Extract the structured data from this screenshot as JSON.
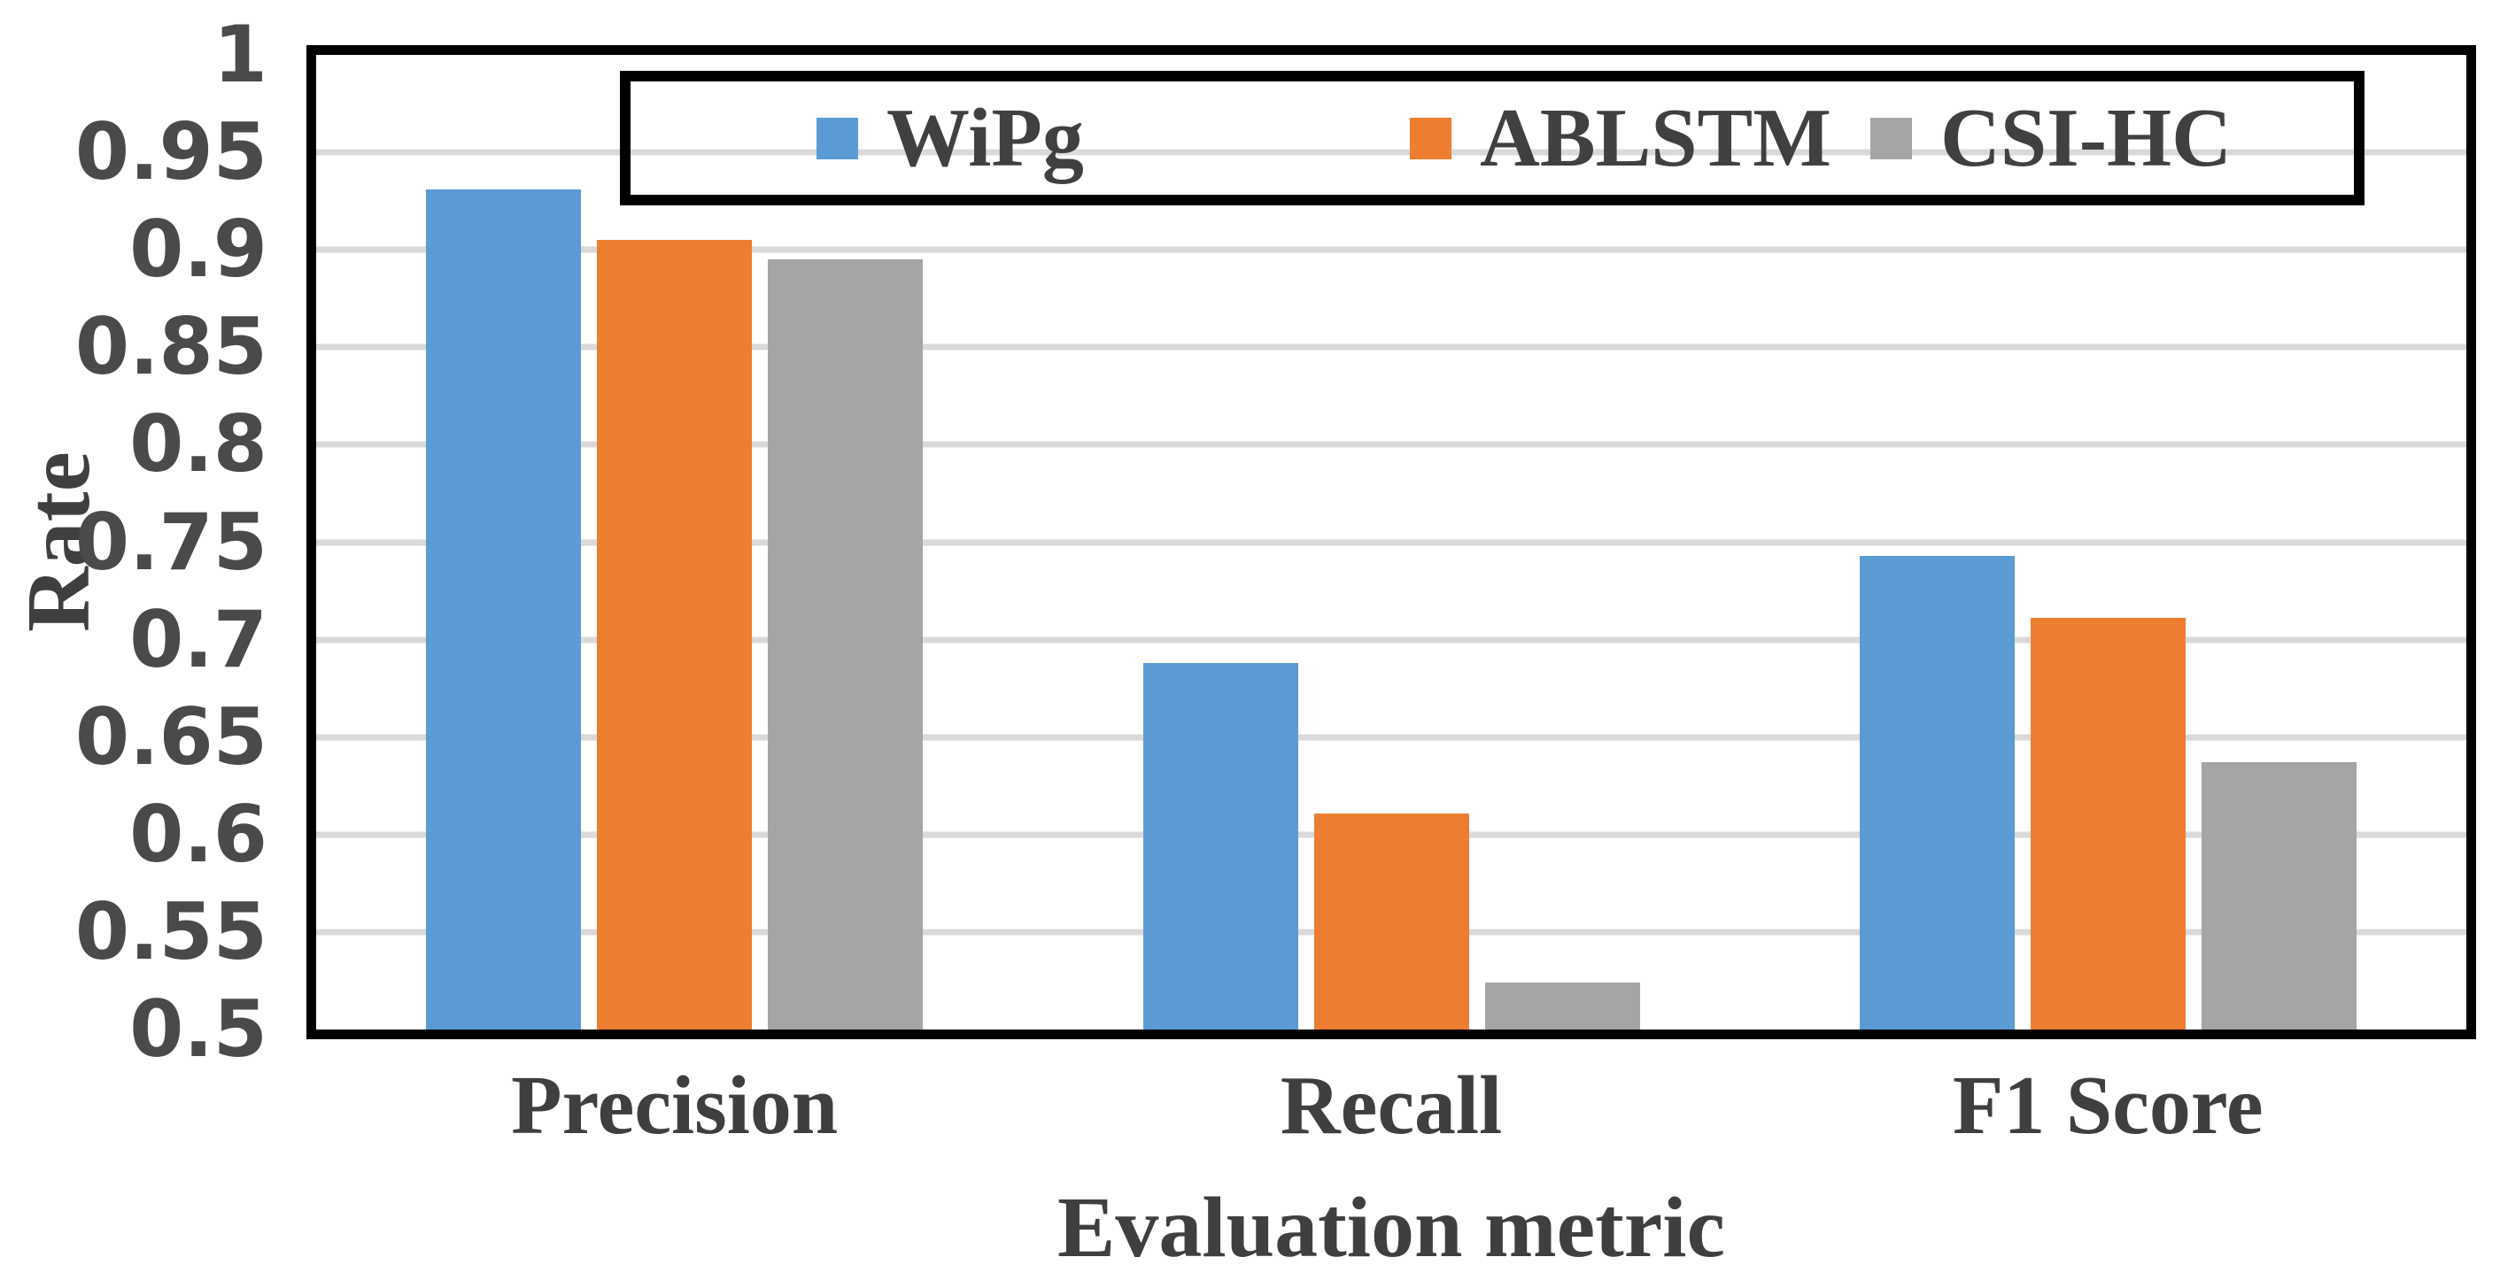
{
  "chart_data": {
    "type": "bar",
    "title": "",
    "categories": [
      "Precision",
      "Recall",
      "F1 Score"
    ],
    "series": [
      {
        "name": "WiPg",
        "color": "#5B9BD5",
        "values": [
          0.931,
          0.688,
          0.743
        ]
      },
      {
        "name": "ABLSTM",
        "color": "#ED7D31",
        "values": [
          0.905,
          0.611,
          0.711
        ]
      },
      {
        "name": "CSI-HC",
        "color": "#A5A5A5",
        "values": [
          0.895,
          0.524,
          0.637
        ]
      }
    ],
    "xlabel": "Evaluation metric",
    "ylabel": "Rate",
    "ylim": [
      0.5,
      1.0
    ],
    "ytick_labels": [
      "1",
      "0.95",
      "0.9",
      "0.85",
      "0.8",
      "0.75",
      "0.7",
      "0.65",
      "0.6",
      "0.55",
      "0.5"
    ],
    "grid": true,
    "gridline_color": "#D9D9D9",
    "axis_border_color": "#000000",
    "tick_text_color": "#4a4a4a",
    "label_text_color": "#3f3f3f",
    "legend_position": "top-center-inside",
    "legend_border_color": "#000000"
  }
}
